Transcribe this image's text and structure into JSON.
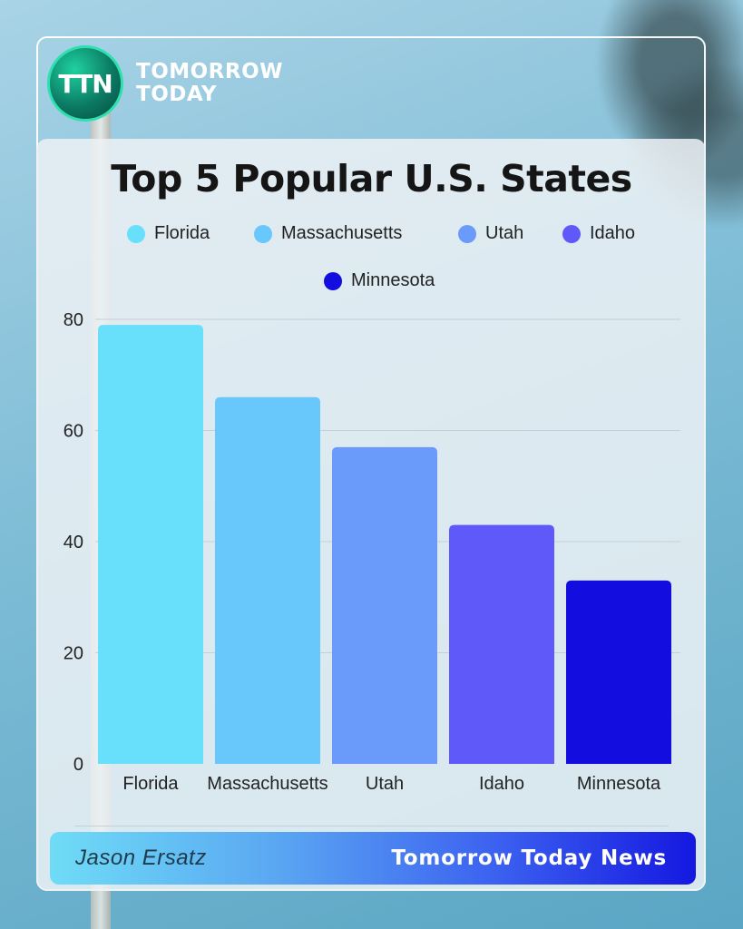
{
  "brand": {
    "logo_text": "TTN",
    "name_line1": "TOMORROW",
    "name_line2": "TODAY"
  },
  "chart_data": {
    "type": "bar",
    "title": "Top 5 Popular U.S. States",
    "categories": [
      "Florida",
      "Massachusetts",
      "Utah",
      "Idaho",
      "Minnesota"
    ],
    "values": [
      79,
      66,
      57,
      43,
      33
    ],
    "colors": [
      "#69e0fb",
      "#68c7fb",
      "#6b9bfa",
      "#5e59f8",
      "#140ddf"
    ],
    "ylim": [
      0,
      80
    ],
    "yticks": [
      0,
      20,
      40,
      60,
      80
    ],
    "grid": true,
    "legend_position": "top"
  },
  "footer": {
    "author": "Jason Ersatz",
    "outlet": "Tomorrow Today News"
  }
}
